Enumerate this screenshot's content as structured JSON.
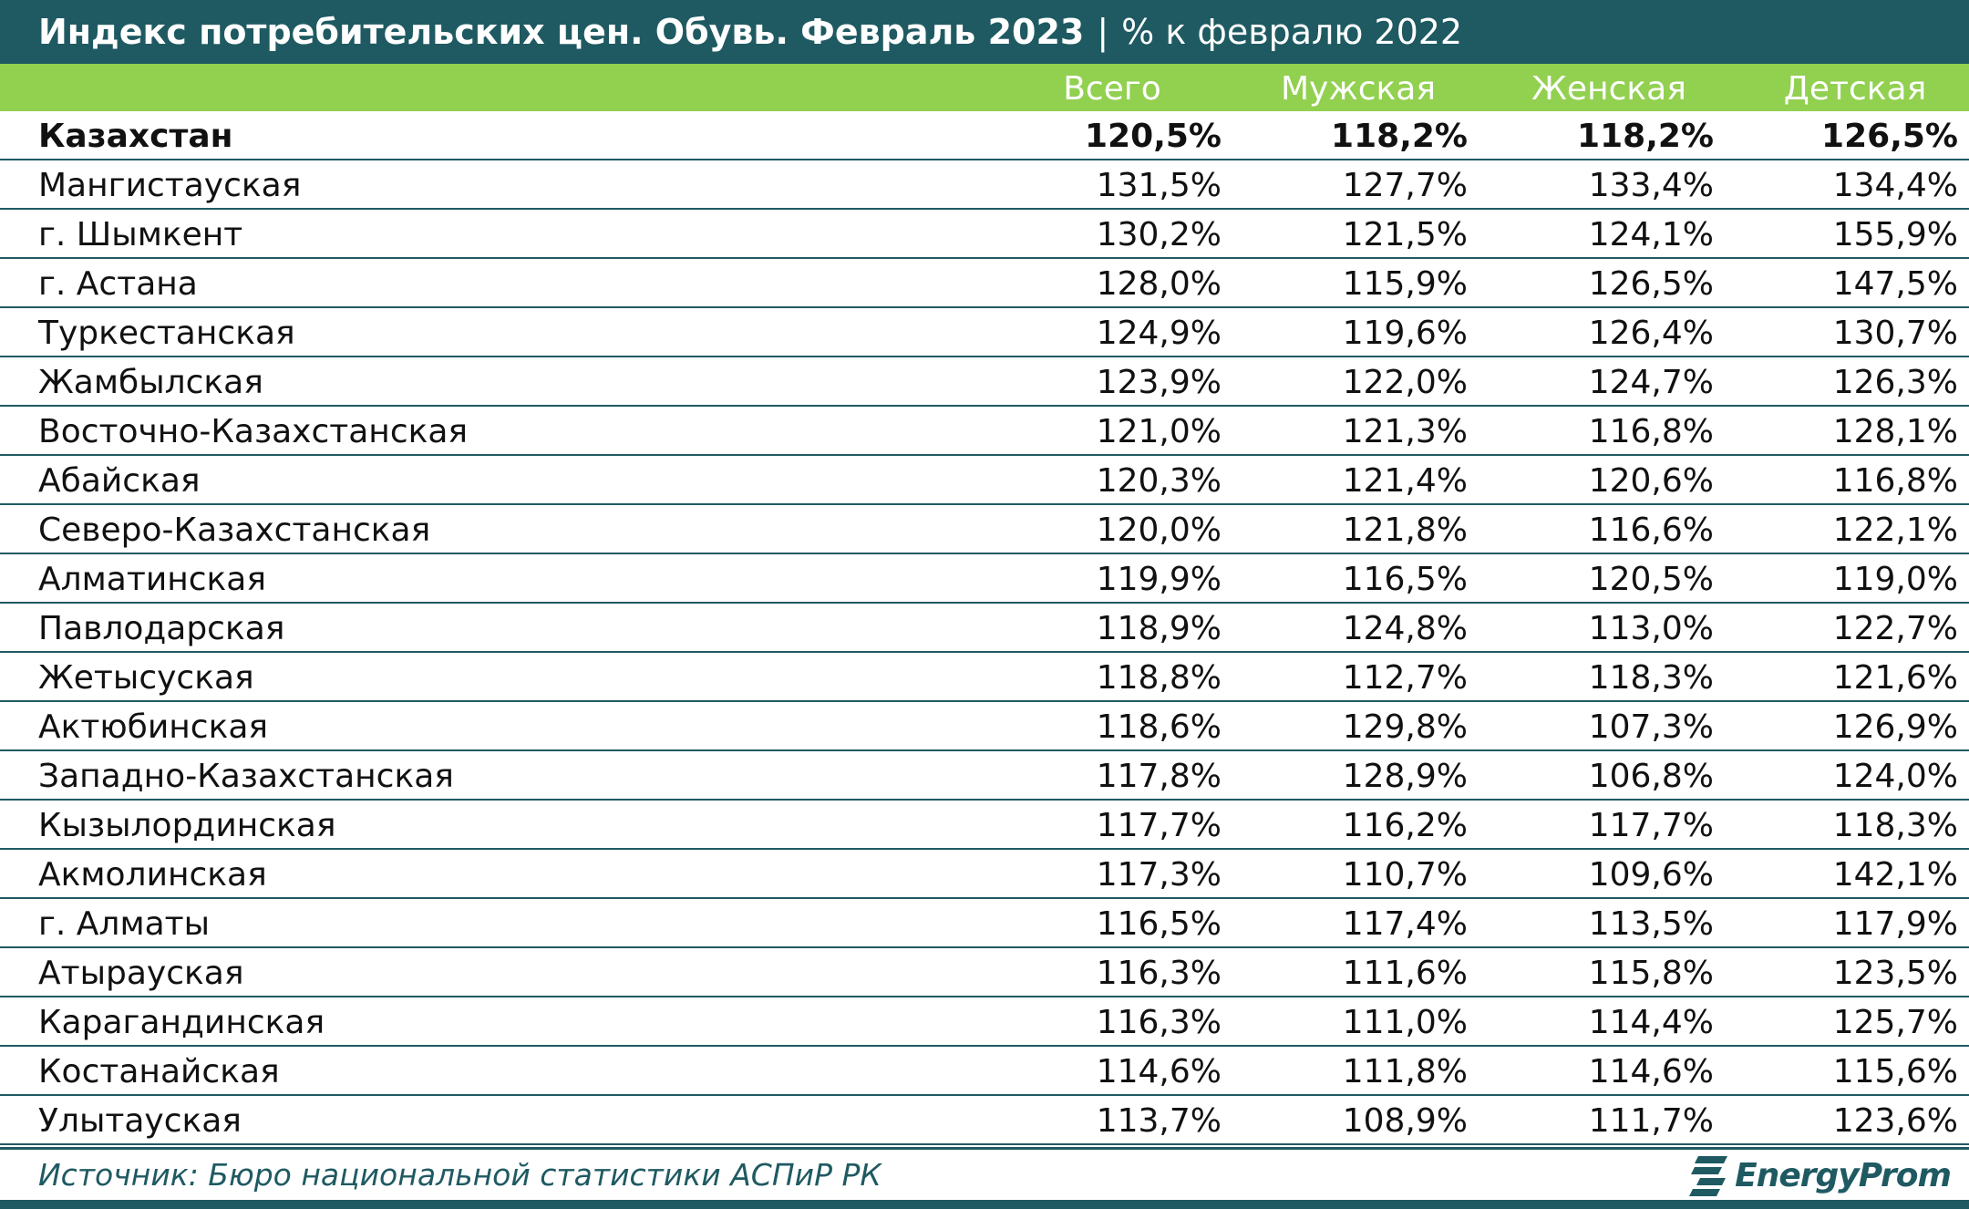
{
  "title": {
    "main": "Индекс потребительских цен. Обувь. Февраль 2023",
    "separator": "|",
    "subtitle": "% к февралю 2022"
  },
  "chart_data": {
    "type": "table",
    "columns": [
      "Всего",
      "Мужская",
      "Женская",
      "Детская"
    ],
    "rows": [
      {
        "region": "Казахстан",
        "values": [
          "120,5%",
          "118,2%",
          "118,2%",
          "126,5%"
        ],
        "bold": true
      },
      {
        "region": "Мангистауская",
        "values": [
          "131,5%",
          "127,7%",
          "133,4%",
          "134,4%"
        ]
      },
      {
        "region": "г. Шымкент",
        "values": [
          "130,2%",
          "121,5%",
          "124,1%",
          "155,9%"
        ]
      },
      {
        "region": "г. Астана",
        "values": [
          "128,0%",
          "115,9%",
          "126,5%",
          "147,5%"
        ]
      },
      {
        "region": "Туркестанская",
        "values": [
          "124,9%",
          "119,6%",
          "126,4%",
          "130,7%"
        ]
      },
      {
        "region": "Жамбылская",
        "values": [
          "123,9%",
          "122,0%",
          "124,7%",
          "126,3%"
        ]
      },
      {
        "region": "Восточно-Казахстанская",
        "values": [
          "121,0%",
          "121,3%",
          "116,8%",
          "128,1%"
        ]
      },
      {
        "region": "Абайская",
        "values": [
          "120,3%",
          "121,4%",
          "120,6%",
          "116,8%"
        ]
      },
      {
        "region": "Северо-Казахстанская",
        "values": [
          "120,0%",
          "121,8%",
          "116,6%",
          "122,1%"
        ]
      },
      {
        "region": "Алматинская",
        "values": [
          "119,9%",
          "116,5%",
          "120,5%",
          "119,0%"
        ]
      },
      {
        "region": "Павлодарская",
        "values": [
          "118,9%",
          "124,8%",
          "113,0%",
          "122,7%"
        ]
      },
      {
        "region": "Жетысуская",
        "values": [
          "118,8%",
          "112,7%",
          "118,3%",
          "121,6%"
        ]
      },
      {
        "region": "Актюбинская",
        "values": [
          "118,6%",
          "129,8%",
          "107,3%",
          "126,9%"
        ]
      },
      {
        "region": "Западно-Казахстанская",
        "values": [
          "117,8%",
          "128,9%",
          "106,8%",
          "124,0%"
        ]
      },
      {
        "region": "Кызылординская",
        "values": [
          "117,7%",
          "116,2%",
          "117,7%",
          "118,3%"
        ]
      },
      {
        "region": "Акмолинская",
        "values": [
          "117,3%",
          "110,7%",
          "109,6%",
          "142,1%"
        ]
      },
      {
        "region": "г. Алматы",
        "values": [
          "116,5%",
          "117,4%",
          "113,5%",
          "117,9%"
        ]
      },
      {
        "region": "Атырауская",
        "values": [
          "116,3%",
          "111,6%",
          "115,8%",
          "123,5%"
        ]
      },
      {
        "region": "Карагандинская",
        "values": [
          "116,3%",
          "111,0%",
          "114,4%",
          "125,7%"
        ]
      },
      {
        "region": "Костанайская",
        "values": [
          "114,6%",
          "111,8%",
          "114,6%",
          "115,6%"
        ]
      },
      {
        "region": "Улытауская",
        "values": [
          "113,7%",
          "108,9%",
          "111,7%",
          "123,6%"
        ]
      }
    ]
  },
  "footer": {
    "source": "Источник: Бюро национальной статистики АСПиР РК",
    "logo_text": "EnergyProm",
    "logo_icon": "energyprom-logo-icon"
  },
  "colors": {
    "title_bg": "#1f5a62",
    "header_bg": "#92d050",
    "row_border": "#1f5a62"
  }
}
